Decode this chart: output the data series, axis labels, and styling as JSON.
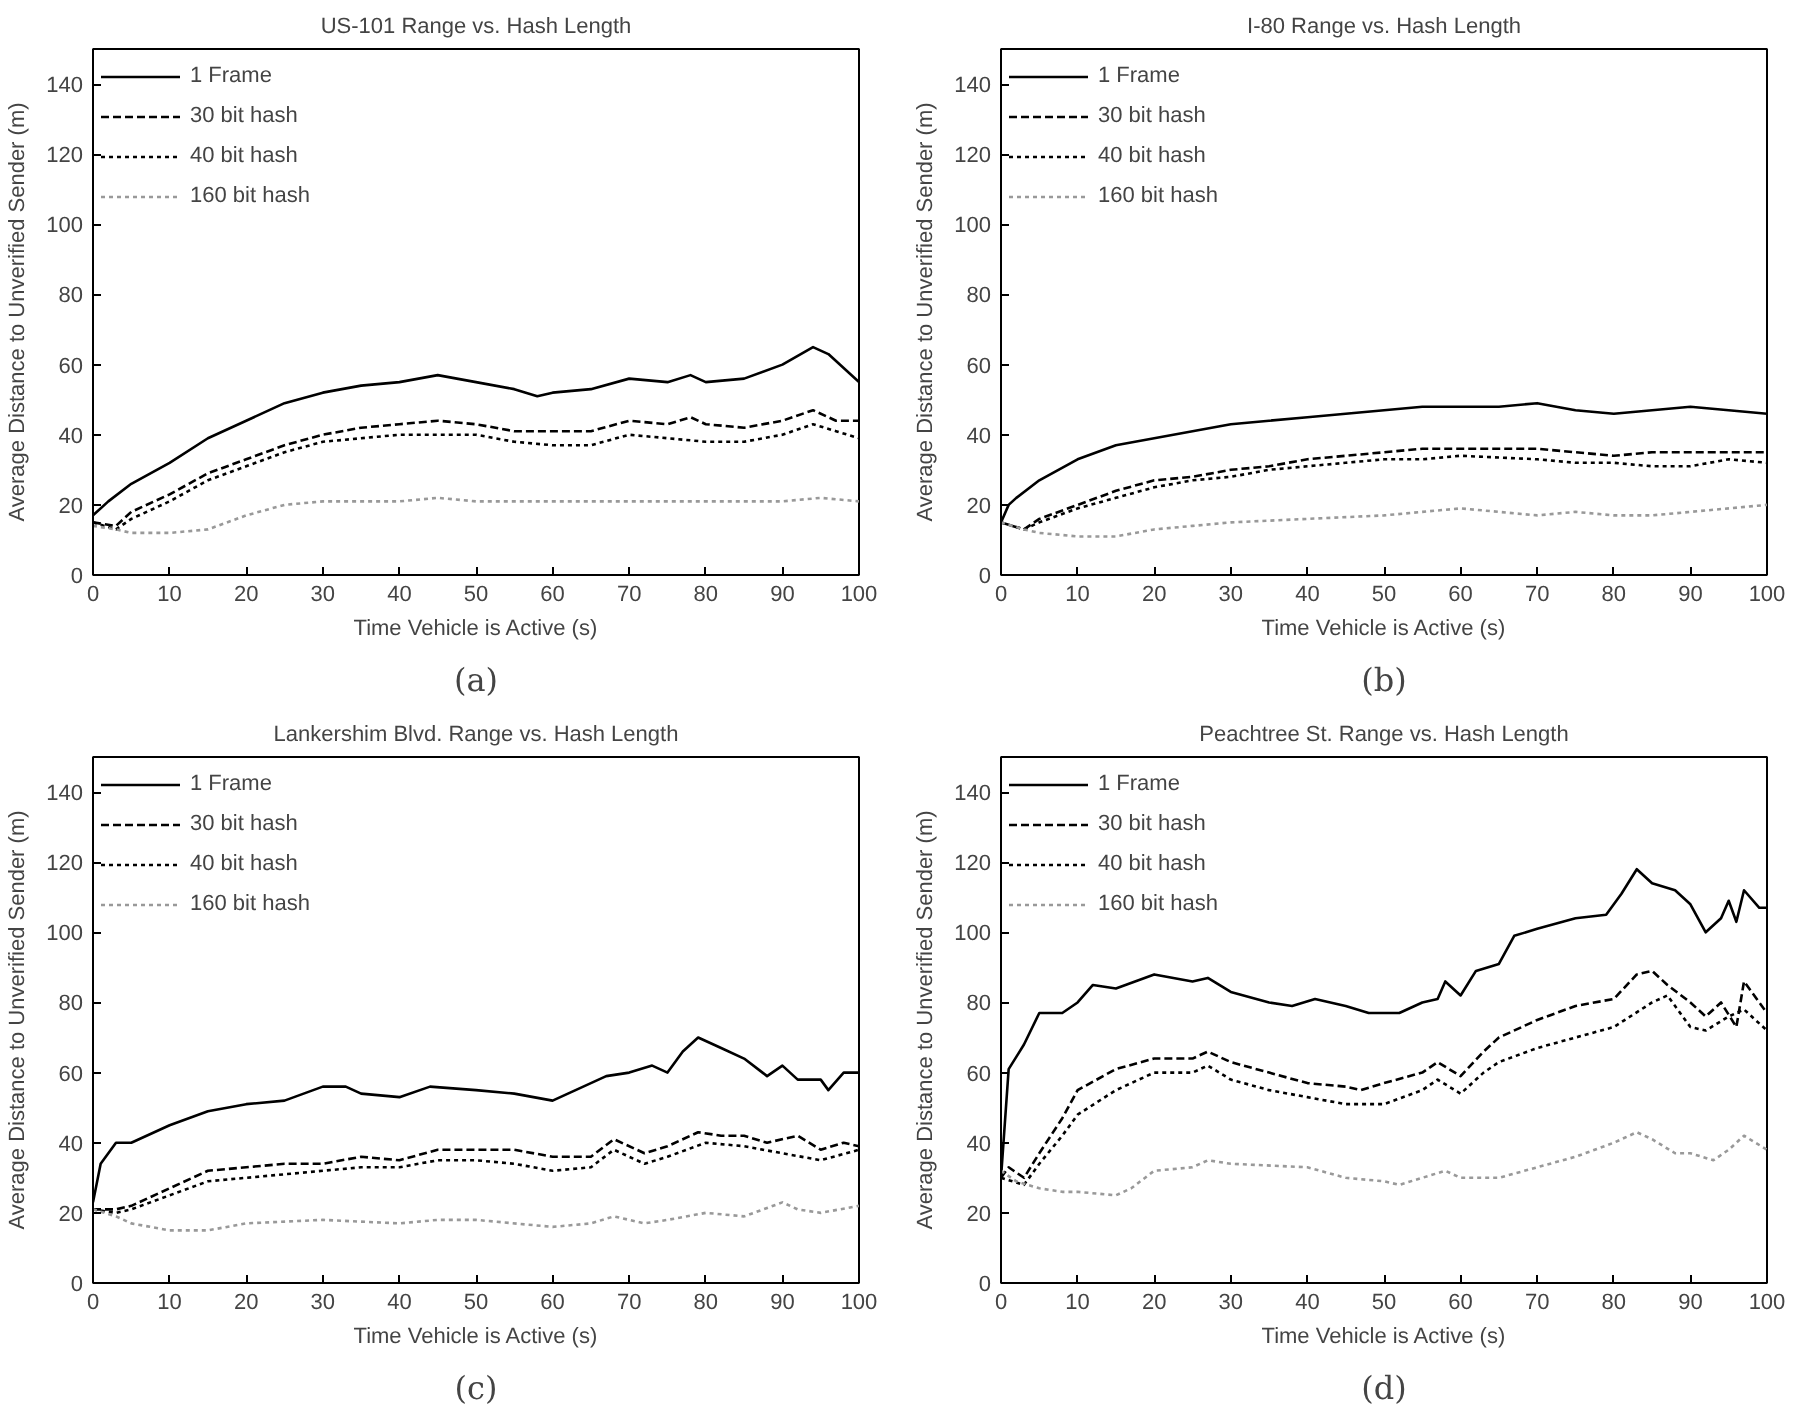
{
  "chart_data": [
    {
      "type": "line",
      "title": "US-101 Range vs. Hash Length",
      "xlabel": "Time Vehicle is Active (s)",
      "ylabel": "Average Distance to Unverified Sender (m)",
      "annotations": [
        "(a)"
      ],
      "xlim": [
        0,
        100
      ],
      "ylim": [
        0,
        150
      ],
      "xticks": [
        0,
        10,
        20,
        30,
        40,
        50,
        60,
        70,
        80,
        90,
        100
      ],
      "yticks": [
        0,
        20,
        40,
        60,
        80,
        100,
        120,
        140
      ],
      "grid": false,
      "legend": "top left",
      "series": [
        {
          "name": "1 Frame",
          "color": "#000000",
          "line_style": "solid",
          "x": [
            0,
            2,
            5,
            10,
            15,
            20,
            25,
            30,
            35,
            40,
            45,
            50,
            55,
            58,
            60,
            65,
            70,
            75,
            78,
            80,
            85,
            90,
            94,
            96,
            100
          ],
          "values": [
            17,
            21,
            26,
            32,
            39,
            44,
            49,
            52,
            54,
            55,
            57,
            55,
            53,
            51,
            52,
            53,
            56,
            55,
            57,
            55,
            56,
            60,
            65,
            63,
            55
          ]
        },
        {
          "name": "30 bit hash",
          "color": "#000000",
          "line_style": "dashed",
          "x": [
            0,
            3,
            5,
            10,
            15,
            20,
            25,
            30,
            35,
            40,
            45,
            50,
            55,
            60,
            65,
            70,
            75,
            78,
            80,
            85,
            90,
            94,
            97,
            100
          ],
          "values": [
            15,
            14,
            18,
            23,
            29,
            33,
            37,
            40,
            42,
            43,
            44,
            43,
            41,
            41,
            41,
            44,
            43,
            45,
            43,
            42,
            44,
            47,
            44,
            44
          ]
        },
        {
          "name": "40 bit hash",
          "color": "#000000",
          "line_style": "dotted",
          "x": [
            0,
            3,
            5,
            10,
            15,
            20,
            25,
            30,
            35,
            40,
            45,
            50,
            55,
            60,
            65,
            70,
            75,
            80,
            85,
            90,
            94,
            97,
            100
          ],
          "values": [
            15,
            13,
            16,
            21,
            27,
            31,
            35,
            38,
            39,
            40,
            40,
            40,
            38,
            37,
            37,
            40,
            39,
            38,
            38,
            40,
            43,
            41,
            39
          ]
        },
        {
          "name": "160 bit hash",
          "color": "#999999",
          "line_style": "dotted",
          "x": [
            0,
            3,
            5,
            10,
            15,
            20,
            25,
            30,
            40,
            45,
            50,
            60,
            70,
            80,
            90,
            95,
            100
          ],
          "values": [
            14,
            13,
            12,
            12,
            13,
            17,
            20,
            21,
            21,
            22,
            21,
            21,
            21,
            21,
            21,
            22,
            21
          ]
        }
      ]
    },
    {
      "type": "line",
      "title": "I-80 Range vs. Hash Length",
      "xlabel": "Time Vehicle is Active (s)",
      "ylabel": "Average Distance to Unverified Sender (m)",
      "annotations": [
        "(b)"
      ],
      "xlim": [
        0,
        100
      ],
      "ylim": [
        0,
        150
      ],
      "xticks": [
        0,
        10,
        20,
        30,
        40,
        50,
        60,
        70,
        80,
        90,
        100
      ],
      "yticks": [
        0,
        20,
        40,
        60,
        80,
        100,
        120,
        140
      ],
      "grid": false,
      "legend": "top left",
      "series": [
        {
          "name": "1 Frame",
          "color": "#000000",
          "line_style": "solid",
          "x": [
            0,
            1,
            2,
            5,
            10,
            15,
            20,
            25,
            30,
            35,
            40,
            45,
            50,
            55,
            60,
            65,
            70,
            75,
            80,
            85,
            90,
            95,
            100
          ],
          "values": [
            15,
            20,
            22,
            27,
            33,
            37,
            39,
            41,
            43,
            44,
            45,
            46,
            47,
            48,
            48,
            48,
            49,
            47,
            46,
            47,
            48,
            47,
            46
          ]
        },
        {
          "name": "30 bit hash",
          "color": "#000000",
          "line_style": "dashed",
          "x": [
            0,
            3,
            5,
            10,
            15,
            20,
            25,
            30,
            35,
            40,
            45,
            50,
            55,
            60,
            65,
            70,
            75,
            80,
            85,
            90,
            95,
            100
          ],
          "values": [
            15,
            13,
            16,
            20,
            24,
            27,
            28,
            30,
            31,
            33,
            34,
            35,
            36,
            36,
            36,
            36,
            35,
            34,
            35,
            35,
            35,
            35
          ]
        },
        {
          "name": "40 bit hash",
          "color": "#000000",
          "line_style": "dotted",
          "x": [
            0,
            3,
            5,
            10,
            15,
            20,
            25,
            30,
            35,
            40,
            45,
            50,
            55,
            60,
            70,
            75,
            80,
            85,
            90,
            95,
            100
          ],
          "values": [
            15,
            13,
            15,
            19,
            22,
            25,
            27,
            28,
            30,
            31,
            32,
            33,
            33,
            34,
            33,
            32,
            32,
            31,
            31,
            33,
            32
          ]
        },
        {
          "name": "160 bit hash",
          "color": "#999999",
          "line_style": "dotted",
          "x": [
            0,
            3,
            5,
            10,
            15,
            20,
            25,
            30,
            40,
            50,
            55,
            60,
            65,
            70,
            75,
            80,
            85,
            90,
            95,
            100
          ],
          "values": [
            15,
            13,
            12,
            11,
            11,
            13,
            14,
            15,
            16,
            17,
            18,
            19,
            18,
            17,
            18,
            17,
            17,
            18,
            19,
            20
          ]
        }
      ]
    },
    {
      "type": "line",
      "title": "Lankershim Blvd. Range vs. Hash Length",
      "xlabel": "Time Vehicle is Active (s)",
      "ylabel": "Average Distance to Unverified Sender (m)",
      "annotations": [
        "(c)"
      ],
      "xlim": [
        0,
        100
      ],
      "ylim": [
        0,
        150
      ],
      "xticks": [
        0,
        10,
        20,
        30,
        40,
        50,
        60,
        70,
        80,
        90,
        100
      ],
      "yticks": [
        0,
        20,
        40,
        60,
        80,
        100,
        120,
        140
      ],
      "grid": false,
      "legend": "top left",
      "series": [
        {
          "name": "1 Frame",
          "color": "#000000",
          "line_style": "solid",
          "x": [
            0,
            1,
            3,
            5,
            10,
            15,
            20,
            25,
            30,
            33,
            35,
            40,
            44,
            50,
            55,
            60,
            63,
            67,
            70,
            73,
            75,
            77,
            79,
            82,
            85,
            88,
            90,
            92,
            95,
            96,
            98,
            100
          ],
          "values": [
            23,
            34,
            40,
            40,
            45,
            49,
            51,
            52,
            56,
            56,
            54,
            53,
            56,
            55,
            54,
            52,
            55,
            59,
            60,
            62,
            60,
            66,
            70,
            67,
            64,
            59,
            62,
            58,
            58,
            55,
            60,
            60
          ]
        },
        {
          "name": "30 bit hash",
          "color": "#000000",
          "line_style": "dashed",
          "x": [
            0,
            3,
            5,
            10,
            15,
            20,
            25,
            30,
            35,
            40,
            45,
            50,
            55,
            60,
            65,
            68,
            72,
            75,
            79,
            82,
            85,
            88,
            92,
            95,
            98,
            100
          ],
          "values": [
            21,
            21,
            22,
            27,
            32,
            33,
            34,
            34,
            36,
            35,
            38,
            38,
            38,
            36,
            36,
            41,
            37,
            39,
            43,
            42,
            42,
            40,
            42,
            38,
            40,
            39
          ]
        },
        {
          "name": "40 bit hash",
          "color": "#000000",
          "line_style": "dotted",
          "x": [
            0,
            3,
            5,
            10,
            15,
            20,
            25,
            30,
            35,
            40,
            45,
            50,
            55,
            60,
            65,
            68,
            72,
            75,
            80,
            85,
            90,
            95,
            100
          ],
          "values": [
            21,
            20,
            21,
            25,
            29,
            30,
            31,
            32,
            33,
            33,
            35,
            35,
            34,
            32,
            33,
            38,
            34,
            36,
            40,
            39,
            37,
            35,
            38
          ]
        },
        {
          "name": "160 bit hash",
          "color": "#999999",
          "line_style": "dotted",
          "x": [
            0,
            3,
            5,
            10,
            15,
            20,
            30,
            40,
            45,
            50,
            60,
            65,
            68,
            72,
            75,
            80,
            85,
            90,
            92,
            95,
            100
          ],
          "values": [
            21,
            19,
            17,
            15,
            15,
            17,
            18,
            17,
            18,
            18,
            16,
            17,
            19,
            17,
            18,
            20,
            19,
            23,
            21,
            20,
            22
          ]
        }
      ]
    },
    {
      "type": "line",
      "title": "Peachtree St. Range vs. Hash Length",
      "xlabel": "Time Vehicle is Active (s)",
      "ylabel": "Average Distance to Unverified Sender (m)",
      "annotations": [
        "(d)"
      ],
      "xlim": [
        0,
        100
      ],
      "ylim": [
        0,
        150
      ],
      "xticks": [
        0,
        10,
        20,
        30,
        40,
        50,
        60,
        70,
        80,
        90,
        100
      ],
      "yticks": [
        0,
        20,
        40,
        60,
        80,
        100,
        120,
        140
      ],
      "grid": false,
      "legend": "top left",
      "series": [
        {
          "name": "1 Frame",
          "color": "#000000",
          "line_style": "solid",
          "x": [
            0,
            1,
            3,
            5,
            8,
            10,
            12,
            15,
            20,
            25,
            27,
            30,
            35,
            38,
            41,
            45,
            48,
            52,
            55,
            57,
            58,
            60,
            62,
            65,
            67,
            70,
            75,
            79,
            81,
            83,
            85,
            88,
            90,
            92,
            94,
            95,
            96,
            97,
            99,
            100
          ],
          "values": [
            30,
            61,
            68,
            77,
            77,
            80,
            85,
            84,
            88,
            86,
            87,
            83,
            80,
            79,
            81,
            79,
            77,
            77,
            80,
            81,
            86,
            82,
            89,
            91,
            99,
            101,
            104,
            105,
            111,
            118,
            114,
            112,
            108,
            100,
            104,
            109,
            103,
            112,
            107,
            107
          ]
        },
        {
          "name": "30 bit hash",
          "color": "#000000",
          "line_style": "dashed",
          "x": [
            0,
            1,
            3,
            5,
            8,
            10,
            15,
            20,
            25,
            27,
            30,
            35,
            40,
            45,
            47,
            50,
            55,
            57,
            60,
            63,
            65,
            70,
            75,
            80,
            83,
            85,
            87,
            90,
            92,
            94,
            96,
            97,
            100
          ],
          "values": [
            30,
            33,
            30,
            37,
            47,
            55,
            61,
            64,
            64,
            66,
            63,
            60,
            57,
            56,
            55,
            57,
            60,
            63,
            59,
            66,
            70,
            75,
            79,
            81,
            88,
            89,
            85,
            80,
            76,
            80,
            73,
            86,
            77
          ]
        },
        {
          "name": "40 bit hash",
          "color": "#000000",
          "line_style": "dotted",
          "x": [
            0,
            3,
            5,
            8,
            10,
            15,
            20,
            25,
            27,
            30,
            35,
            40,
            45,
            50,
            55,
            57,
            60,
            63,
            65,
            70,
            75,
            80,
            85,
            87,
            90,
            92,
            95,
            97,
            100
          ],
          "values": [
            30,
            28,
            34,
            42,
            48,
            55,
            60,
            60,
            62,
            58,
            55,
            53,
            51,
            51,
            55,
            58,
            54,
            60,
            63,
            67,
            70,
            73,
            80,
            82,
            73,
            72,
            76,
            78,
            72
          ]
        },
        {
          "name": "160 bit hash",
          "color": "#999999",
          "line_style": "dotted",
          "x": [
            0,
            2,
            5,
            8,
            10,
            15,
            17,
            20,
            25,
            27,
            30,
            40,
            45,
            50,
            52,
            55,
            58,
            60,
            65,
            70,
            75,
            80,
            83,
            85,
            88,
            90,
            93,
            95,
            97,
            100
          ],
          "values": [
            32,
            29,
            27,
            26,
            26,
            25,
            27,
            32,
            33,
            35,
            34,
            33,
            30,
            29,
            28,
            30,
            32,
            30,
            30,
            33,
            36,
            40,
            43,
            41,
            37,
            37,
            35,
            38,
            42,
            38
          ]
        }
      ]
    }
  ]
}
